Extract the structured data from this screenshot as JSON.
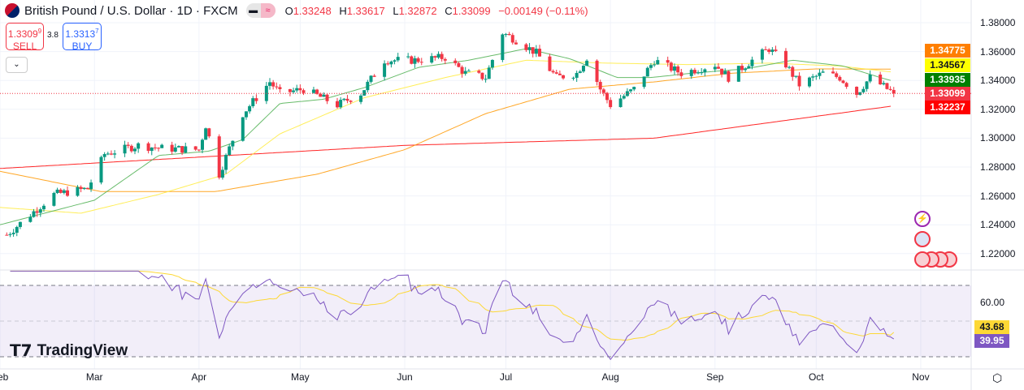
{
  "header": {
    "title": "British Pound / U.S. Dollar · 1D · FXCM",
    "open_label": "O",
    "open": "1.33248",
    "high_label": "H",
    "high": "1.33617",
    "low_label": "L",
    "low": "1.32872",
    "close_label": "C",
    "close": "1.33099",
    "change": "−0.00149 (−0.11%)",
    "icon": "gbp-usd-flag-icon"
  },
  "trade": {
    "sell_price": "1.3309",
    "sell_sup": "9",
    "sell_label": "SELL",
    "spread": "3.8",
    "buy_price": "1.3313",
    "buy_sup": "7",
    "buy_label": "BUY"
  },
  "price_axis": [
    "1.38000",
    "1.36000",
    "1.34000",
    "1.32000",
    "1.30000",
    "1.28000",
    "1.26000",
    "1.24000",
    "1.22000"
  ],
  "price_labels": [
    {
      "value": "1.34775",
      "color": "#ff7f00"
    },
    {
      "value": "1.34567",
      "color": "#ffff00",
      "text": "#131722"
    },
    {
      "value": "1.33935",
      "color": "#008000"
    },
    {
      "value": "1.33099",
      "color": "#f23645"
    },
    {
      "value": "1.32237",
      "color": "#ff0000"
    }
  ],
  "rsi_axis": "60.00",
  "rsi_ma_label": "43.68",
  "rsi_label": "39.95",
  "time_axis": [
    "Feb",
    "Mar",
    "Apr",
    "May",
    "Jun",
    "Jul",
    "Aug",
    "Sep",
    "Oct",
    "Nov"
  ],
  "logo": "TradingView",
  "colors": {
    "up": "#089981",
    "down": "#f23645",
    "rsi": "#7e57c2",
    "rsi_ma": "#fdd835"
  },
  "chart_data": {
    "type": "candlestick",
    "y_range": [
      1.21,
      1.385
    ],
    "close_path": [
      [
        "2025-02-03",
        1.233
      ],
      [
        "2025-02-10",
        1.247
      ],
      [
        "2025-02-17",
        1.261
      ],
      [
        "2025-02-27",
        1.265
      ],
      [
        "2025-03-04",
        1.289
      ],
      [
        "2025-03-14",
        1.295
      ],
      [
        "2025-03-21",
        1.293
      ],
      [
        "2025-04-01",
        1.292
      ],
      [
        "2025-04-03",
        1.309
      ],
      [
        "2025-04-07",
        1.275
      ],
      [
        "2025-04-14",
        1.317
      ],
      [
        "2025-04-22",
        1.339
      ],
      [
        "2025-04-25",
        1.331
      ],
      [
        "2025-05-02",
        1.334
      ],
      [
        "2025-05-12",
        1.323
      ],
      [
        "2025-05-19",
        1.331
      ],
      [
        "2025-05-26",
        1.354
      ],
      [
        "2025-06-04",
        1.354
      ],
      [
        "2025-06-13",
        1.356
      ],
      [
        "2025-06-19",
        1.345
      ],
      [
        "2025-06-25",
        1.342
      ],
      [
        "2025-06-30",
        1.373
      ],
      [
        "2025-07-04",
        1.368
      ],
      [
        "2025-07-10",
        1.359
      ],
      [
        "2025-07-16",
        1.342
      ],
      [
        "2025-07-22",
        1.345
      ],
      [
        "2025-07-25",
        1.356
      ],
      [
        "2025-07-29",
        1.334
      ],
      [
        "2025-08-01",
        1.323
      ],
      [
        "2025-08-08",
        1.334
      ],
      [
        "2025-08-14",
        1.354
      ],
      [
        "2025-08-22",
        1.345
      ],
      [
        "2025-09-01",
        1.351
      ],
      [
        "2025-09-05",
        1.342
      ],
      [
        "2025-09-12",
        1.354
      ],
      [
        "2025-09-17",
        1.362
      ],
      [
        "2025-09-22",
        1.351
      ],
      [
        "2025-09-26",
        1.337
      ],
      [
        "2025-10-03",
        1.345
      ],
      [
        "2025-10-08",
        1.342
      ],
      [
        "2025-10-13",
        1.331
      ],
      [
        "2025-10-17",
        1.342
      ],
      [
        "2025-10-24",
        1.331
      ]
    ],
    "ma_lines": [
      {
        "color": "#ff0000",
        "points": [
          [
            "2025-02-01",
            1.279
          ],
          [
            "2025-06-01",
            1.295
          ],
          [
            "2025-08-14",
            1.3
          ],
          [
            "2025-10-24",
            1.3224
          ]
        ]
      },
      {
        "color": "#ff9800",
        "points": [
          [
            "2025-02-01",
            1.277
          ],
          [
            "2025-03-03",
            1.263
          ],
          [
            "2025-04-06",
            1.263
          ],
          [
            "2025-05-06",
            1.275
          ],
          [
            "2025-06-01",
            1.292
          ],
          [
            "2025-06-25",
            1.317
          ],
          [
            "2025-07-20",
            1.334
          ],
          [
            "2025-08-14",
            1.339
          ],
          [
            "2025-09-06",
            1.345
          ],
          [
            "2025-10-01",
            1.348
          ],
          [
            "2025-10-24",
            1.3478
          ]
        ]
      },
      {
        "color": "#ffeb3b",
        "points": [
          [
            "2025-02-01",
            1.252
          ],
          [
            "2025-02-25",
            1.248
          ],
          [
            "2025-03-20",
            1.261
          ],
          [
            "2025-04-09",
            1.275
          ],
          [
            "2025-04-25",
            1.303
          ],
          [
            "2025-05-20",
            1.328
          ],
          [
            "2025-06-13",
            1.342
          ],
          [
            "2025-07-07",
            1.354
          ],
          [
            "2025-07-31",
            1.352
          ],
          [
            "2025-08-24",
            1.351
          ],
          [
            "2025-09-17",
            1.352
          ],
          [
            "2025-10-08",
            1.35
          ],
          [
            "2025-10-24",
            1.3457
          ]
        ]
      },
      {
        "color": "#4caf50",
        "points": [
          [
            "2025-02-01",
            1.24
          ],
          [
            "2025-03-01",
            1.257
          ],
          [
            "2025-03-20",
            1.288
          ],
          [
            "2025-04-04",
            1.291
          ],
          [
            "2025-04-14",
            1.299
          ],
          [
            "2025-04-25",
            1.324
          ],
          [
            "2025-05-08",
            1.327
          ],
          [
            "2025-05-20",
            1.335
          ],
          [
            "2025-06-05",
            1.349
          ],
          [
            "2025-06-20",
            1.354
          ],
          [
            "2025-07-07",
            1.362
          ],
          [
            "2025-07-20",
            1.355
          ],
          [
            "2025-08-03",
            1.342
          ],
          [
            "2025-08-13",
            1.342
          ],
          [
            "2025-08-25",
            1.345
          ],
          [
            "2025-09-10",
            1.348
          ],
          [
            "2025-09-24",
            1.354
          ],
          [
            "2025-10-09",
            1.35
          ],
          [
            "2025-10-20",
            1.342
          ],
          [
            "2025-10-24",
            1.3394
          ]
        ]
      }
    ],
    "rsi_range": [
      25,
      75
    ],
    "rsi_levels": [
      70,
      30
    ]
  }
}
